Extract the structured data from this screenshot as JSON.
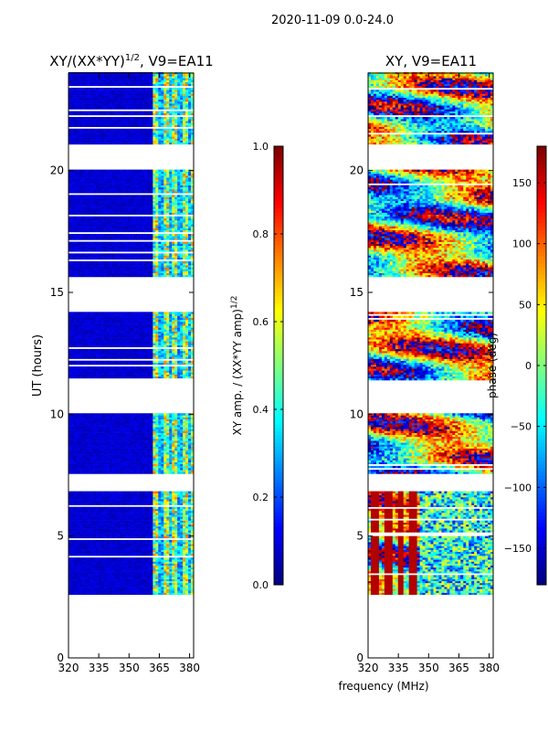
{
  "figure": {
    "suptitle": "2020-11-09 0.0-24.0",
    "shared_xlabel": "frequency (MHz)"
  },
  "colors": {
    "background": "#ffffff",
    "axis": "#000000",
    "gap": "#ffffff"
  },
  "chart_data": [
    {
      "type": "heatmap",
      "name": "amplitude",
      "title_main": "XY/(XX*YY)",
      "title_exp": "1/2",
      "title_suffix": ", V9=EA11",
      "xlabel": "",
      "ylabel": "UT (hours)",
      "xlim": [
        320,
        382
      ],
      "ylim": [
        0,
        24
      ],
      "xticks": [
        320,
        335,
        350,
        365,
        380
      ],
      "yticks": [
        0,
        5,
        10,
        15,
        20
      ],
      "colormap": "jet",
      "data_start_hour": 2.6,
      "data_end_hour": 24,
      "gaps_hours": [
        [
          6.8,
          7.5
        ],
        [
          10.0,
          11.4
        ],
        [
          14.2,
          15.6
        ],
        [
          20.0,
          21.0
        ]
      ],
      "bright_channel_range_mhz": [
        362,
        382
      ],
      "value_baseline": 0.05,
      "value_bright": 0.55
    },
    {
      "type": "colorbar",
      "name": "amplitude-colorbar",
      "label_main": "XY amp. / (XX*YY amp)",
      "label_exp": "1/2",
      "range": [
        0,
        1
      ],
      "ticks": [
        0.0,
        0.2,
        0.4,
        0.6,
        0.8,
        1.0
      ],
      "tick_labels": [
        "0.0",
        "0.2",
        "0.4",
        "0.6",
        "0.8",
        "1.0"
      ]
    },
    {
      "type": "heatmap",
      "name": "phase",
      "title": "XY, V9=EA11",
      "xlabel": "frequency (MHz)",
      "ylabel": "",
      "xlim": [
        320,
        382
      ],
      "ylim": [
        0,
        24
      ],
      "xticks": [
        320,
        335,
        350,
        365,
        380
      ],
      "yticks": [
        0,
        5,
        10,
        15,
        20
      ],
      "colormap": "jet",
      "data_start_hour": 2.6,
      "data_end_hour": 24,
      "gaps_hours": [
        [
          6.8,
          7.5
        ],
        [
          10.0,
          11.4
        ],
        [
          14.2,
          15.6
        ],
        [
          20.0,
          21.0
        ]
      ],
      "value_range_deg": [
        -180,
        180
      ]
    },
    {
      "type": "colorbar",
      "name": "phase-colorbar",
      "label": "phase (deg)",
      "range": [
        -180,
        180
      ],
      "ticks": [
        -150,
        -100,
        -50,
        0,
        50,
        100,
        150
      ],
      "tick_labels": [
        "−150",
        "−100",
        "−50",
        "0",
        "50",
        "100",
        "150"
      ]
    }
  ]
}
